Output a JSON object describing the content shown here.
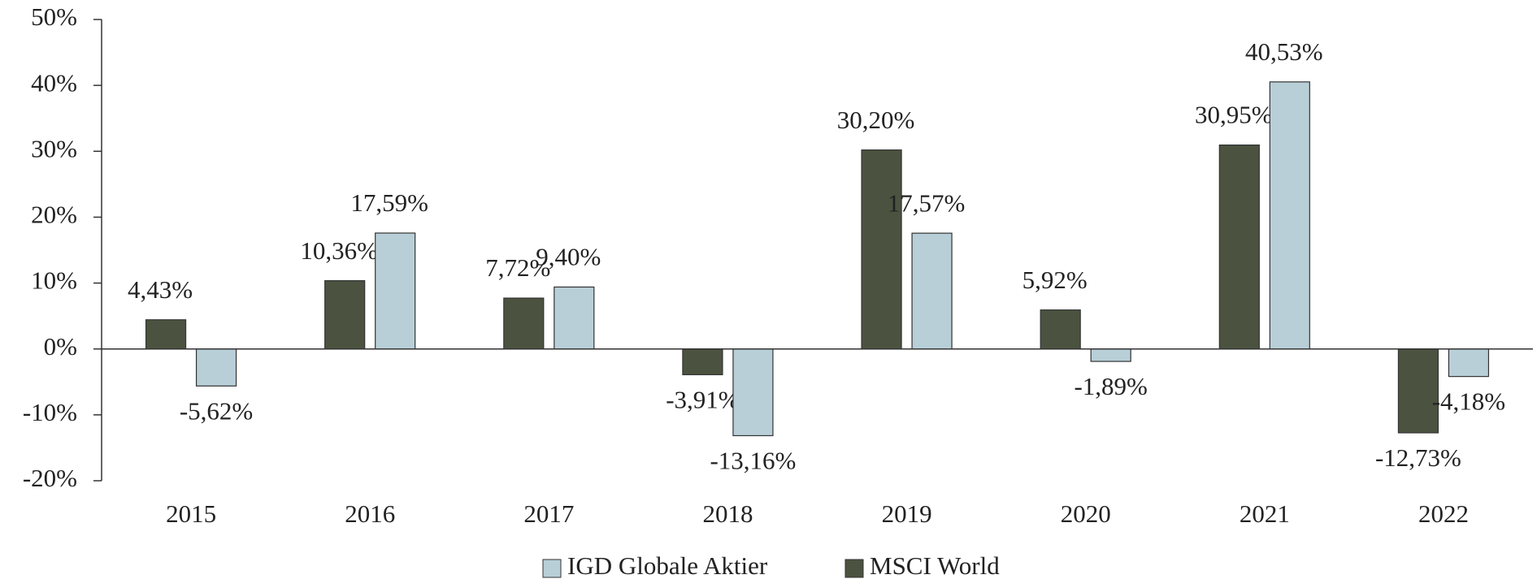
{
  "chart_data": {
    "type": "bar",
    "categories": [
      "2015",
      "2016",
      "2017",
      "2018",
      "2019",
      "2020",
      "2021",
      "2022"
    ],
    "series": [
      {
        "name": "MSCI World",
        "color": "#4b5340",
        "values": [
          4.43,
          10.36,
          7.72,
          -3.91,
          30.2,
          5.92,
          30.95,
          -12.73
        ],
        "value_labels": [
          "4,43%",
          "10,36%",
          "7,72%",
          "-3,91%",
          "30,20%",
          "5,92%",
          "30,95%",
          "-12,73%"
        ]
      },
      {
        "name": "IGD Globale Aktier",
        "color": "#b8cfd8",
        "values": [
          -5.62,
          17.59,
          9.4,
          -13.16,
          17.57,
          -1.89,
          40.53,
          -4.18
        ],
        "value_labels": [
          "-5,62%",
          "17,59%",
          "9,40%",
          "-13,16%",
          "17,57%",
          "-1,89%",
          "40,53%",
          "-4,18%"
        ]
      }
    ],
    "ylim": [
      -20,
      50
    ],
    "yticks": [
      {
        "value": -20,
        "label": "-20%"
      },
      {
        "value": -10,
        "label": "-10%"
      },
      {
        "value": 0,
        "label": "0%"
      },
      {
        "value": 10,
        "label": "10%"
      },
      {
        "value": 20,
        "label": "20%"
      },
      {
        "value": 30,
        "label": "30%"
      },
      {
        "value": 40,
        "label": "40%"
      },
      {
        "value": 50,
        "label": "50%"
      }
    ],
    "legend": "bottom"
  }
}
